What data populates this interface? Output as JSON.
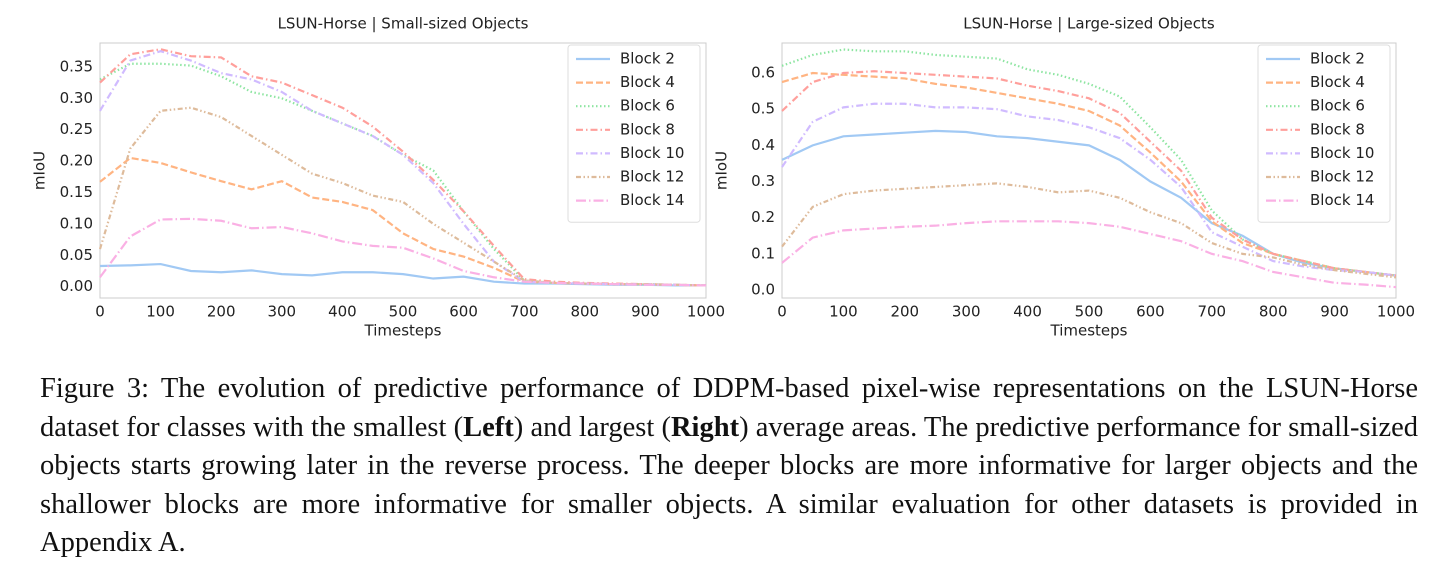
{
  "chart_data": [
    {
      "type": "line",
      "title": "LSUN-Horse | Small-sized Objects",
      "xlabel": "Timesteps",
      "ylabel": "mIoU",
      "x": [
        0,
        50,
        100,
        150,
        200,
        250,
        300,
        350,
        400,
        450,
        500,
        550,
        600,
        650,
        700,
        750,
        800,
        850,
        900,
        950,
        1000
      ],
      "xlim": [
        0,
        1000
      ],
      "xticks": [
        0,
        100,
        200,
        300,
        400,
        500,
        600,
        700,
        800,
        900,
        1000
      ],
      "ylim": [
        -0.018,
        0.388
      ],
      "yticks": [
        {
          "value": 0,
          "label": "0.00"
        },
        {
          "value": 0.05,
          "label": "0.05"
        },
        {
          "value": 0.1,
          "label": "0.10"
        },
        {
          "value": 0.15,
          "label": "0.15"
        },
        {
          "value": 0.2,
          "label": "0.20"
        },
        {
          "value": 0.25,
          "label": "0.25"
        },
        {
          "value": 0.3,
          "label": "0.30"
        },
        {
          "value": 0.35,
          "label": "0.35"
        }
      ],
      "grid": false,
      "legend": "upper right",
      "series": [
        {
          "name": "Block 2",
          "color": "#a1c9f4",
          "linestyle": "solid",
          "values": [
            0.033,
            0.034,
            0.036,
            0.025,
            0.023,
            0.026,
            0.02,
            0.018,
            0.023,
            0.023,
            0.02,
            0.013,
            0.016,
            0.008,
            0.005,
            0.005,
            0.004,
            0.003,
            0.003,
            0.002,
            0.002
          ]
        },
        {
          "name": "Block 4",
          "color": "#ffb482",
          "linestyle": "dashed",
          "values": [
            0.167,
            0.205,
            0.197,
            0.182,
            0.168,
            0.155,
            0.168,
            0.142,
            0.135,
            0.122,
            0.085,
            0.06,
            0.048,
            0.03,
            0.008,
            0.006,
            0.005,
            0.004,
            0.004,
            0.003,
            0.002
          ]
        },
        {
          "name": "Block 6",
          "color": "#8de5a1",
          "linestyle": "dotted",
          "values": [
            0.33,
            0.355,
            0.355,
            0.352,
            0.335,
            0.31,
            0.3,
            0.28,
            0.26,
            0.24,
            0.21,
            0.185,
            0.12,
            0.06,
            0.01,
            0.006,
            0.005,
            0.004,
            0.004,
            0.003,
            0.002
          ]
        },
        {
          "name": "Block 8",
          "color": "#ff9f9b",
          "linestyle": "dashdot",
          "values": [
            0.325,
            0.37,
            0.378,
            0.367,
            0.365,
            0.335,
            0.325,
            0.305,
            0.285,
            0.255,
            0.215,
            0.17,
            0.12,
            0.065,
            0.012,
            0.008,
            0.006,
            0.005,
            0.004,
            0.003,
            0.002
          ]
        },
        {
          "name": "Block 10",
          "color": "#d0bbff",
          "linestyle": "dashdot",
          "values": [
            0.28,
            0.36,
            0.375,
            0.36,
            0.34,
            0.33,
            0.31,
            0.28,
            0.26,
            0.24,
            0.21,
            0.165,
            0.1,
            0.04,
            0.008,
            0.006,
            0.005,
            0.004,
            0.004,
            0.003,
            0.002
          ]
        },
        {
          "name": "Block 12",
          "color": "#debb9b",
          "linestyle": "dashdotdot",
          "values": [
            0.06,
            0.22,
            0.28,
            0.285,
            0.27,
            0.24,
            0.21,
            0.18,
            0.165,
            0.145,
            0.135,
            0.1,
            0.07,
            0.04,
            0.01,
            0.006,
            0.005,
            0.004,
            0.004,
            0.003,
            0.002
          ]
        },
        {
          "name": "Block 14",
          "color": "#fab0e4",
          "linestyle": "longdashdot",
          "values": [
            0.015,
            0.08,
            0.107,
            0.108,
            0.105,
            0.093,
            0.095,
            0.085,
            0.072,
            0.065,
            0.062,
            0.045,
            0.025,
            0.015,
            0.008,
            0.006,
            0.005,
            0.004,
            0.003,
            0.003,
            0.002
          ]
        }
      ]
    },
    {
      "type": "line",
      "title": "LSUN-Horse | Large-sized Objects",
      "xlabel": "Timesteps",
      "ylabel": "mIoU",
      "x": [
        0,
        50,
        100,
        150,
        200,
        250,
        300,
        350,
        400,
        450,
        500,
        550,
        600,
        650,
        700,
        750,
        800,
        850,
        900,
        950,
        1000
      ],
      "xlim": [
        0,
        1000
      ],
      "xticks": [
        0,
        100,
        200,
        300,
        400,
        500,
        600,
        700,
        800,
        900,
        1000
      ],
      "ylim": [
        -0.022,
        0.683
      ],
      "yticks": [
        {
          "value": 0,
          "label": "0.0"
        },
        {
          "value": 0.1,
          "label": "0.1"
        },
        {
          "value": 0.2,
          "label": "0.2"
        },
        {
          "value": 0.3,
          "label": "0.3"
        },
        {
          "value": 0.4,
          "label": "0.4"
        },
        {
          "value": 0.5,
          "label": "0.5"
        },
        {
          "value": 0.6,
          "label": "0.6"
        }
      ],
      "grid": false,
      "legend": "upper right",
      "series": [
        {
          "name": "Block 2",
          "color": "#a1c9f4",
          "linestyle": "solid",
          "values": [
            0.36,
            0.4,
            0.425,
            0.43,
            0.435,
            0.44,
            0.437,
            0.425,
            0.42,
            0.41,
            0.4,
            0.36,
            0.3,
            0.255,
            0.185,
            0.15,
            0.1,
            0.075,
            0.06,
            0.05,
            0.04
          ]
        },
        {
          "name": "Block 4",
          "color": "#ffb482",
          "linestyle": "dashed",
          "values": [
            0.575,
            0.6,
            0.595,
            0.59,
            0.585,
            0.57,
            0.56,
            0.545,
            0.53,
            0.515,
            0.495,
            0.455,
            0.38,
            0.3,
            0.19,
            0.13,
            0.1,
            0.08,
            0.06,
            0.05,
            0.04
          ]
        },
        {
          "name": "Block 6",
          "color": "#8de5a1",
          "linestyle": "dotted",
          "values": [
            0.62,
            0.65,
            0.665,
            0.66,
            0.66,
            0.65,
            0.645,
            0.64,
            0.61,
            0.595,
            0.57,
            0.535,
            0.45,
            0.36,
            0.22,
            0.14,
            0.1,
            0.08,
            0.06,
            0.05,
            0.04
          ]
        },
        {
          "name": "Block 8",
          "color": "#ff9f9b",
          "linestyle": "dashdot",
          "values": [
            0.495,
            0.575,
            0.6,
            0.605,
            0.6,
            0.595,
            0.59,
            0.585,
            0.565,
            0.55,
            0.53,
            0.49,
            0.41,
            0.33,
            0.2,
            0.14,
            0.1,
            0.08,
            0.06,
            0.05,
            0.04
          ]
        },
        {
          "name": "Block 10",
          "color": "#d0bbff",
          "linestyle": "dashdot",
          "values": [
            0.34,
            0.465,
            0.505,
            0.515,
            0.515,
            0.505,
            0.505,
            0.5,
            0.48,
            0.47,
            0.45,
            0.42,
            0.36,
            0.285,
            0.16,
            0.12,
            0.08,
            0.065,
            0.055,
            0.05,
            0.04
          ]
        },
        {
          "name": "Block 12",
          "color": "#debb9b",
          "linestyle": "dashdotdot",
          "values": [
            0.12,
            0.23,
            0.265,
            0.275,
            0.28,
            0.285,
            0.29,
            0.295,
            0.285,
            0.27,
            0.275,
            0.255,
            0.215,
            0.185,
            0.13,
            0.1,
            0.09,
            0.07,
            0.055,
            0.045,
            0.035
          ]
        },
        {
          "name": "Block 14",
          "color": "#fab0e4",
          "linestyle": "longdashdot",
          "values": [
            0.075,
            0.145,
            0.165,
            0.17,
            0.175,
            0.178,
            0.185,
            0.19,
            0.19,
            0.19,
            0.185,
            0.175,
            0.155,
            0.135,
            0.1,
            0.08,
            0.05,
            0.035,
            0.02,
            0.015,
            0.008
          ]
        }
      ]
    }
  ],
  "caption": [
    "Figure 3: The evolution of predictive performance of DDPM-based pixel-wise representations on the LSUN-Horse dataset for classes with the smallest (",
    "Left",
    ") and largest (",
    "Right",
    ") average areas. The predictive performance for small-sized objects starts growing later in the reverse process. The deeper blocks are more informative for larger objects and the shallower blocks are more informative for smaller objects. A similar evaluation for other datasets is provided in Appendix A."
  ]
}
